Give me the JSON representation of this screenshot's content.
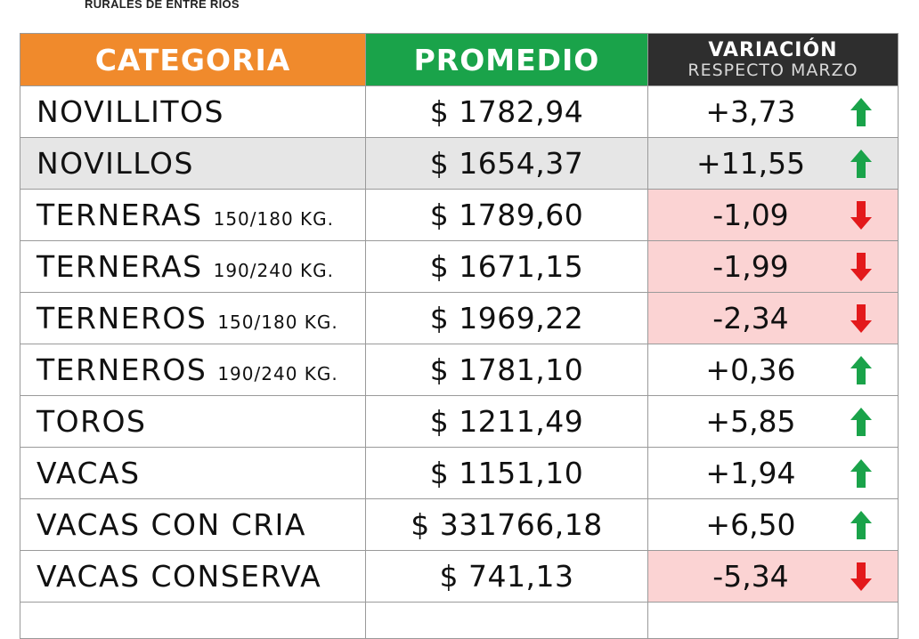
{
  "caption": "RURALES DE ENTRE RIOS",
  "headers": {
    "categoria": "CATEGORIA",
    "promedio": "PROMEDIO",
    "variacion": "VARIACIÓN",
    "variacion_sub": "RESPECTO MARZO"
  },
  "rows": [
    {
      "cat": "NOVILLITOS",
      "sub": "",
      "prom": "$ 1782,94",
      "var": "+3,73",
      "dir": "up",
      "shaded": false
    },
    {
      "cat": "NOVILLOS",
      "sub": "",
      "prom": "$ 1654,37",
      "var": "+11,55",
      "dir": "up",
      "shaded": true
    },
    {
      "cat": "TERNERAS",
      "sub": "150/180 KG.",
      "prom": "$ 1789,60",
      "var": "-1,09",
      "dir": "down",
      "shaded": false
    },
    {
      "cat": "TERNERAS",
      "sub": "190/240 KG.",
      "prom": "$ 1671,15",
      "var": "-1,99",
      "dir": "down",
      "shaded": false
    },
    {
      "cat": "TERNEROS",
      "sub": "150/180 KG.",
      "prom": "$ 1969,22",
      "var": "-2,34",
      "dir": "down",
      "shaded": false
    },
    {
      "cat": "TERNEROS",
      "sub": "190/240 KG.",
      "prom": "$ 1781,10",
      "var": "+0,36",
      "dir": "up",
      "shaded": false
    },
    {
      "cat": "TOROS",
      "sub": "",
      "prom": "$ 1211,49",
      "var": "+5,85",
      "dir": "up",
      "shaded": false
    },
    {
      "cat": "VACAS",
      "sub": "",
      "prom": "$ 1151,10",
      "var": "+1,94",
      "dir": "up",
      "shaded": false
    },
    {
      "cat": "VACAS CON CRIA",
      "sub": "",
      "prom": "$ 331766,18",
      "var": "+6,50",
      "dir": "up",
      "shaded": false
    },
    {
      "cat": "VACAS CONSERVA",
      "sub": "",
      "prom": "$ 741,13",
      "var": "-5,34",
      "dir": "down",
      "shaded": false
    }
  ],
  "colors": {
    "categoria_header": "#f08a2c",
    "promedio_header": "#1aa34a",
    "variacion_header": "#2e2e2e",
    "negative_cell": "#fbd3d3",
    "up_arrow": "#1aa34a",
    "down_arrow": "#e3191b"
  },
  "icons": {
    "up": "arrow-up-icon",
    "down": "arrow-down-icon"
  }
}
